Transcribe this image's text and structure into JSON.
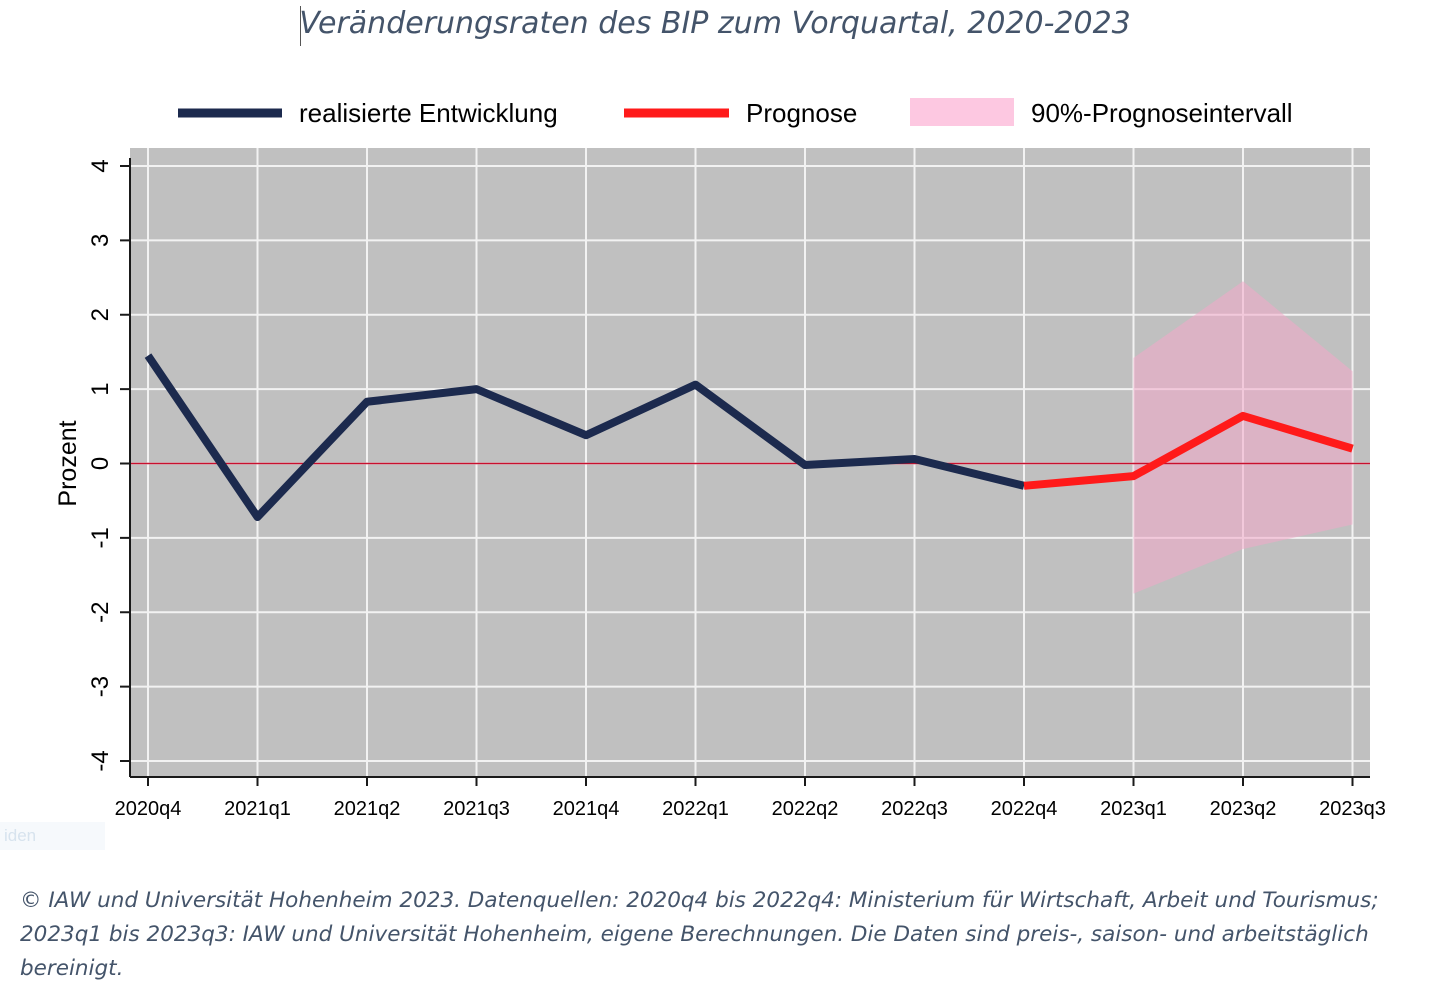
{
  "title": "Veränderungsraten des BIP zum Vorquartal, 2020-2023",
  "footer": "© IAW und Universität Hohenheim 2023. Datenquellen: 2020q4 bis 2022q4: Ministerium für Wirtschaft, Arbeit und Tourismus; 2023q1 bis 2023q3: IAW und Universität Hohenheim, eigene Berechnungen. Die Daten sind preis-, saison- und arbeitstäglich bereinigt.",
  "ghost_text": "iden",
  "chart_data": {
    "type": "line",
    "ylabel": "Prozent",
    "xlabel": "",
    "categories": [
      "2020q4",
      "2021q1",
      "2021q2",
      "2021q3",
      "2021q4",
      "2022q1",
      "2022q2",
      "2022q3",
      "2022q4",
      "2023q1",
      "2023q2",
      "2023q3"
    ],
    "ylim": [
      -4,
      4
    ],
    "yticks": [
      4,
      3,
      2,
      1,
      0,
      -1,
      -2,
      -3,
      -4
    ],
    "legend_position": "top",
    "grid": true,
    "series": [
      {
        "name": "realisierte Entwicklung",
        "color": "#1c2a4e",
        "values": [
          1.45,
          -0.72,
          0.83,
          1.0,
          0.38,
          1.06,
          -0.02,
          0.06,
          -0.3,
          null,
          null,
          null
        ]
      },
      {
        "name": "Prognose",
        "color": "#ff1a1a",
        "values": [
          null,
          null,
          null,
          null,
          null,
          null,
          null,
          null,
          -0.3,
          -0.17,
          0.64,
          0.2
        ]
      }
    ],
    "interval": {
      "name": "90%-Prognoseintervall",
      "color": "#f2a7c9",
      "upper": [
        null,
        null,
        null,
        null,
        null,
        null,
        null,
        null,
        null,
        1.42,
        2.45,
        1.24
      ],
      "lower": [
        null,
        null,
        null,
        null,
        null,
        null,
        null,
        null,
        null,
        -1.75,
        -1.15,
        -0.82
      ]
    },
    "reference_line": {
      "value": 0,
      "color": "#c8102e"
    }
  }
}
